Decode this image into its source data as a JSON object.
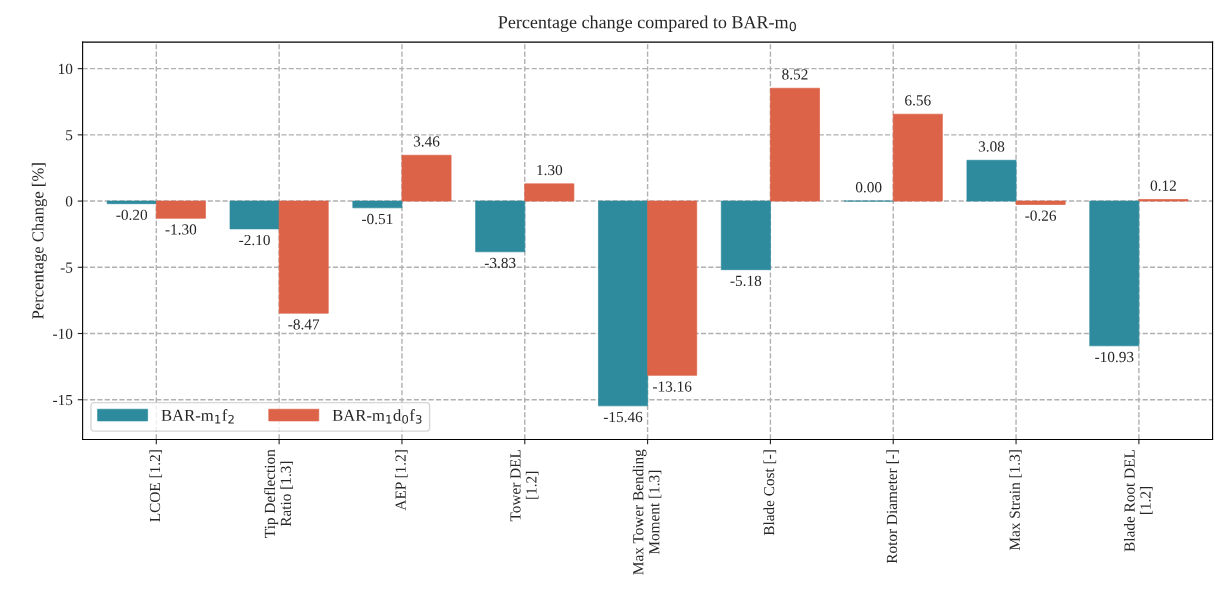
{
  "chart_data": {
    "type": "bar",
    "title": "Percentage change compared to BAR-m$_{0}$",
    "ylabel": "Percentage Change [%]",
    "categories": [
      "LCOE [1.2]",
      "Tip Deflection\nRatio [1.3]",
      "AEP [1.2]",
      "Tower DEL\n[1.2]",
      "Max Tower Bending\nMoment [1.3]",
      "Blade Cost [-]",
      "Rotor Diameter [-]",
      "Max Strain [1.3]",
      "Blade Root DEL\n[1.2]"
    ],
    "series": [
      {
        "name": "BAR-m$_{1}$f$_{2}$",
        "color": "#2e8b9e",
        "values": [
          -0.2,
          -2.1,
          -0.51,
          -3.83,
          -15.46,
          -5.18,
          0.0,
          3.08,
          -10.93
        ],
        "value_labels": [
          "-0.20",
          "-2.10",
          "-0.51",
          "-3.83",
          "-15.46",
          "-5.18",
          "0.00",
          "3.08",
          "-10.93"
        ]
      },
      {
        "name": "BAR-m$_{1}$d$_{0}$f$_{3}$",
        "color": "#dd6348",
        "values": [
          -1.3,
          -8.47,
          3.46,
          1.3,
          -13.16,
          8.52,
          6.56,
          -0.26,
          0.12
        ],
        "value_labels": [
          "-1.30",
          "-8.47",
          "3.46",
          "1.30",
          "-13.16",
          "8.52",
          "6.56",
          "-0.26",
          "0.12"
        ]
      }
    ],
    "ylim": [
      -18,
      12
    ],
    "yticks": [
      -15,
      -10,
      -5,
      0,
      5,
      10
    ],
    "grid": true,
    "line_style": "dashed",
    "legend": "bottom left"
  }
}
